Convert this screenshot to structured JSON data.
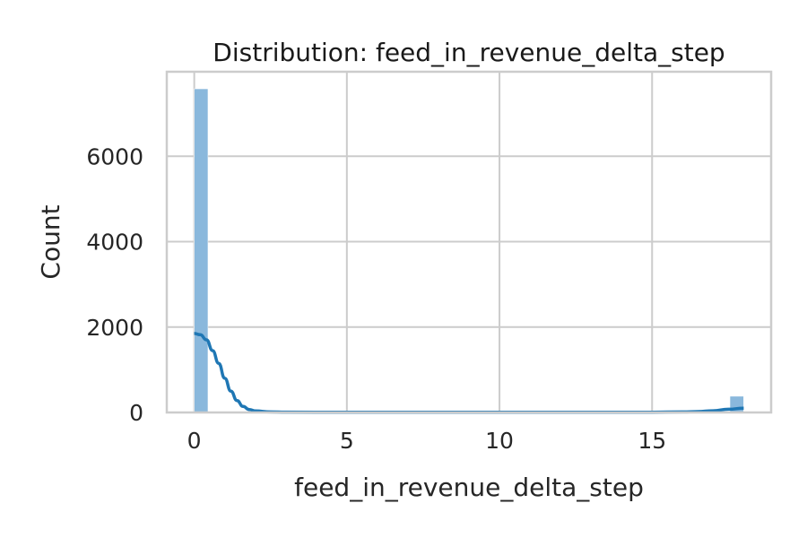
{
  "chart_data": {
    "type": "histogram",
    "title": "Distribution: feed_in_revenue_delta_step",
    "xlabel": "feed_in_revenue_delta_step",
    "ylabel": "Count",
    "xlim": [
      -0.9,
      18.9
    ],
    "ylim": [
      0,
      7980
    ],
    "xticks": [
      0,
      5,
      10,
      15
    ],
    "yticks": [
      0,
      2000,
      4000,
      6000
    ],
    "bar_color": "#8ab8dc",
    "kde_color": "#1f77b4",
    "grid": true,
    "bins": [
      {
        "x0": 0.0,
        "x1": 0.45,
        "count": 7580
      },
      {
        "x0": 17.55,
        "x1": 18.0,
        "count": 380
      }
    ],
    "kde": {
      "x": [
        0,
        0.2,
        0.4,
        0.6,
        0.8,
        1.0,
        1.2,
        1.4,
        1.6,
        1.8,
        2.0,
        2.5,
        3,
        5,
        8,
        10,
        12,
        14,
        15,
        16,
        16.5,
        17,
        17.5,
        18
      ],
      "y": [
        1850,
        1820,
        1700,
        1450,
        1150,
        800,
        500,
        280,
        140,
        70,
        35,
        12,
        8,
        5,
        5,
        5,
        5,
        5,
        7,
        12,
        20,
        40,
        75,
        100
      ]
    }
  }
}
